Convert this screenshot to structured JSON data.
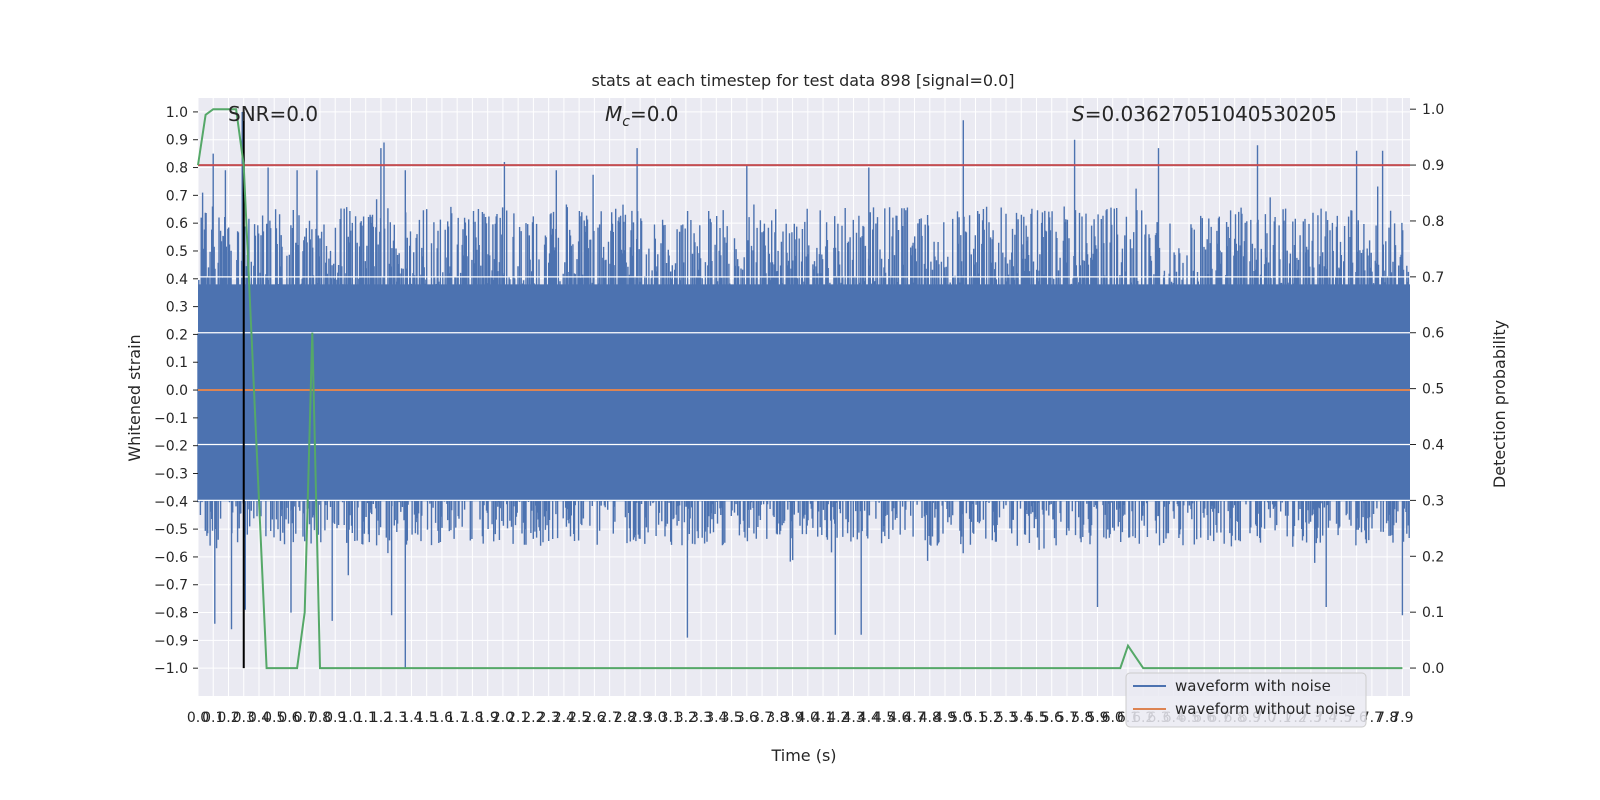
{
  "chart_data": {
    "type": "line",
    "title": "stats at each timestep for test data 898 [signal=0.0]",
    "xlabel": "Time (s)",
    "ylabel_left": "Whitened strain",
    "ylabel_right": "Detection probability",
    "xlim": [
      0.0,
      7.95
    ],
    "ylim_left": [
      -1.1,
      1.05
    ],
    "ylim_right": [
      -0.05,
      1.02
    ],
    "grid": true,
    "legend_position": "lower right",
    "x_ticks": [
      "0.0",
      "0.1",
      "0.2",
      "0.3",
      "0.4",
      "0.5",
      "0.6",
      "0.7",
      "0.8",
      "0.9",
      "1.0",
      "1.1",
      "1.2",
      "1.3",
      "1.4",
      "1.5",
      "1.6",
      "1.7",
      "1.8",
      "1.9",
      "2.0",
      "2.1",
      "2.2",
      "2.3",
      "2.4",
      "2.5",
      "2.6",
      "2.7",
      "2.8",
      "2.9",
      "3.0",
      "3.1",
      "3.2",
      "3.3",
      "3.4",
      "3.5",
      "3.6",
      "3.7",
      "3.8",
      "3.9",
      "4.0",
      "4.1",
      "4.2",
      "4.3",
      "4.4",
      "4.5",
      "4.6",
      "4.7",
      "4.8",
      "4.9",
      "5.0",
      "5.1",
      "5.2",
      "5.3",
      "5.4",
      "5.5",
      "5.6",
      "5.7",
      "5.8",
      "5.9",
      "6.0",
      "6.1",
      "6.2",
      "6.3",
      "6.4",
      "6.5",
      "6.6",
      "6.7",
      "6.8",
      "6.9",
      "7.0",
      "7.1",
      "7.2",
      "7.3",
      "7.4",
      "7.5",
      "7.6",
      "7.7",
      "7.8",
      "7.9"
    ],
    "y_ticks_left": [
      "1.0",
      "0.9",
      "0.8",
      "0.7",
      "0.6",
      "0.5",
      "0.4",
      "0.3",
      "0.2",
      "0.1",
      "0.0",
      "−0.1",
      "−0.2",
      "−0.3",
      "−0.4",
      "−0.5",
      "−0.6",
      "−0.7",
      "−0.8",
      "−0.9",
      "−1.0"
    ],
    "y_ticks_right": [
      "1.0",
      "0.9",
      "0.8",
      "0.7",
      "0.6",
      "0.5",
      "0.4",
      "0.3",
      "0.2",
      "0.1",
      "0.0"
    ],
    "annotations": {
      "snr": "SNR=0.0",
      "mc_symbol": "M",
      "mc_sub": "c",
      "mc_value": "=0.0",
      "s_symbol": "S",
      "s_value": "=0.03627051040530205"
    },
    "series": [
      {
        "name": "waveform with noise",
        "color": "#4c72b0",
        "axis": "left",
        "kind": "noise",
        "envelope": [
          0.66,
          -0.56
        ],
        "peaks": [
          {
            "x": 0.03,
            "y": 0.71
          },
          {
            "x": 0.1,
            "y": 0.85
          },
          {
            "x": 0.18,
            "y": 0.79
          },
          {
            "x": 0.29,
            "y": 1.0
          },
          {
            "x": 0.46,
            "y": 0.8
          },
          {
            "x": 0.65,
            "y": 0.79
          },
          {
            "x": 0.78,
            "y": 0.79
          },
          {
            "x": 1.2,
            "y": 0.87
          },
          {
            "x": 1.22,
            "y": 0.89
          },
          {
            "x": 1.36,
            "y": 0.79
          },
          {
            "x": 2.01,
            "y": 0.82
          },
          {
            "x": 2.35,
            "y": 0.79
          },
          {
            "x": 2.88,
            "y": 0.87
          },
          {
            "x": 3.6,
            "y": 0.81
          },
          {
            "x": 4.4,
            "y": 0.8
          },
          {
            "x": 5.02,
            "y": 0.97
          },
          {
            "x": 5.75,
            "y": 0.9
          },
          {
            "x": 6.3,
            "y": 0.87
          },
          {
            "x": 6.95,
            "y": 0.88
          },
          {
            "x": 7.6,
            "y": 0.86
          },
          {
            "x": 7.77,
            "y": 0.86
          }
        ],
        "troughs": [
          {
            "x": 0.11,
            "y": -0.84
          },
          {
            "x": 0.22,
            "y": -0.86
          },
          {
            "x": 0.31,
            "y": -0.79
          },
          {
            "x": 0.61,
            "y": -0.8
          },
          {
            "x": 0.88,
            "y": -0.83
          },
          {
            "x": 1.27,
            "y": -0.81
          },
          {
            "x": 1.36,
            "y": -1.0
          },
          {
            "x": 3.21,
            "y": -0.89
          },
          {
            "x": 4.18,
            "y": -0.88
          },
          {
            "x": 4.35,
            "y": -0.88
          },
          {
            "x": 5.9,
            "y": -0.78
          },
          {
            "x": 7.4,
            "y": -0.78
          },
          {
            "x": 7.9,
            "y": -0.81
          }
        ]
      },
      {
        "name": "waveform without noise",
        "color": "#dd8452",
        "axis": "left",
        "y": 0.0
      },
      {
        "name": "detection probability",
        "color": "#55a868",
        "axis": "right",
        "x": [
          0.0,
          0.05,
          0.1,
          0.15,
          0.2,
          0.25,
          0.3,
          0.35,
          0.4,
          0.45,
          0.5,
          0.55,
          0.6,
          0.65,
          0.7,
          0.75,
          0.8,
          0.85,
          6.0,
          6.05,
          6.1,
          6.15,
          6.2,
          7.9
        ],
        "y": [
          0.9,
          0.99,
          1.0,
          1.0,
          1.0,
          1.0,
          0.9,
          0.6,
          0.3,
          0.0,
          0.0,
          0.0,
          0.0,
          0.0,
          0.1,
          0.6,
          0.0,
          0.0,
          0.0,
          0.0,
          0.04,
          0.02,
          0.0,
          0.0
        ]
      }
    ],
    "reference_lines": [
      {
        "axis": "right",
        "y": 0.9,
        "color": "#c44e52"
      },
      {
        "axis": "left",
        "x": 0.3,
        "color": "#000000",
        "y_range": [
          -1.0,
          1.0
        ]
      }
    ]
  },
  "legend": {
    "items": [
      {
        "label": "waveform with noise",
        "color": "#4c72b0"
      },
      {
        "label": "waveform without noise",
        "color": "#dd8452"
      }
    ]
  }
}
